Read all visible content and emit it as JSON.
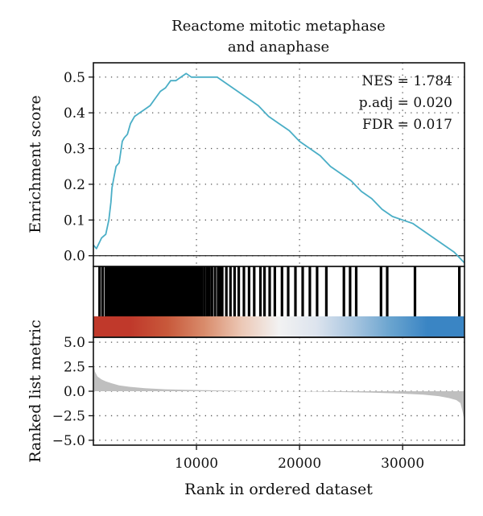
{
  "chart_data": {
    "type": "line",
    "title_lines": [
      "Reactome mitotic metaphase",
      "and anaphase"
    ],
    "xlabel": "Rank in ordered dataset",
    "x_range": [
      0,
      36000
    ],
    "x_ticks": [
      10000,
      20000,
      30000
    ],
    "x_tick_labels": [
      "10000",
      "20000",
      "30000"
    ],
    "grid": true,
    "annotations": [
      "NES = 1.784",
      "p.adj = 0.020",
      "FDR = 0.017"
    ],
    "annotation_position": "top-right",
    "enrichment": {
      "ylabel": "Enrichment score",
      "ylim": [
        -0.03,
        0.54
      ],
      "y_ticks": [
        0.0,
        0.1,
        0.2,
        0.3,
        0.4,
        0.5
      ],
      "y_tick_labels": [
        "0.0",
        "0.1",
        "0.2",
        "0.3",
        "0.4",
        "0.5"
      ],
      "line_color": "#4aaec6",
      "x": [
        0,
        300,
        800,
        1200,
        1500,
        1700,
        1800,
        2000,
        2200,
        2500,
        2800,
        3000,
        3300,
        3600,
        4000,
        4500,
        5000,
        5500,
        6000,
        6500,
        7000,
        7500,
        8000,
        8500,
        9000,
        9500,
        10000,
        11000,
        12000,
        13000,
        14000,
        15000,
        16000,
        17000,
        18000,
        19000,
        20000,
        21000,
        22000,
        23000,
        24000,
        25000,
        26000,
        27000,
        28000,
        29000,
        30000,
        31000,
        32000,
        33000,
        34000,
        35000,
        36000
      ],
      "y": [
        0.03,
        0.02,
        0.05,
        0.06,
        0.1,
        0.15,
        0.19,
        0.22,
        0.25,
        0.26,
        0.32,
        0.33,
        0.34,
        0.37,
        0.39,
        0.4,
        0.41,
        0.42,
        0.44,
        0.46,
        0.47,
        0.49,
        0.49,
        0.5,
        0.51,
        0.5,
        0.5,
        0.5,
        0.5,
        0.48,
        0.46,
        0.44,
        0.42,
        0.39,
        0.37,
        0.35,
        0.32,
        0.3,
        0.28,
        0.25,
        0.23,
        0.21,
        0.18,
        0.16,
        0.13,
        0.11,
        0.1,
        0.09,
        0.07,
        0.05,
        0.03,
        0.01,
        -0.02
      ]
    },
    "gene_hits": {
      "color": "#000000",
      "positions": [
        600,
        900,
        1200,
        1400,
        1600,
        1750,
        1900,
        2000,
        2100,
        2250,
        2400,
        2550,
        2700,
        2800,
        2900,
        3000,
        3100,
        3200,
        3350,
        3500,
        3600,
        3750,
        3900,
        4000,
        4150,
        4300,
        4450,
        4600,
        4800,
        4950,
        5100,
        5300,
        5450,
        5600,
        5800,
        5950,
        6100,
        6250,
        6400,
        6550,
        6700,
        6850,
        7000,
        7150,
        7300,
        7450,
        7600,
        7800,
        7950,
        8100,
        8300,
        8500,
        8700,
        8900,
        9100,
        9300,
        9500,
        9700,
        9900,
        10100,
        10300,
        10500,
        10750,
        11000,
        11250,
        11500,
        11800,
        12100,
        12300,
        12500,
        12900,
        13300,
        13700,
        14100,
        14600,
        15100,
        15600,
        16200,
        16600,
        17100,
        17600,
        18300,
        18900,
        19600,
        20300,
        21000,
        21700,
        22600,
        24300,
        24900,
        25500,
        27900,
        28500,
        31200,
        35500
      ]
    },
    "color_bar": {
      "stops": [
        "#c0392b",
        "#c0392b",
        "#c8593b",
        "#d98c6c",
        "#ecc8b6",
        "#f2f2f2",
        "#dde4ee",
        "#a9c6e0",
        "#6aa4cf",
        "#3a85c4",
        "#3a85c4"
      ]
    },
    "ranked_metric": {
      "ylabel": "Ranked list metric",
      "ylim": [
        -5.5,
        5.5
      ],
      "y_ticks": [
        5.0,
        2.5,
        0.0,
        -2.5,
        -5.0
      ],
      "y_tick_labels": [
        "5.0",
        "2.5",
        "0.0",
        "−2.5",
        "−5.0"
      ],
      "fill_color": "#bfbfbf",
      "x": [
        0,
        150,
        400,
        800,
        1200,
        1800,
        2500,
        3500,
        5000,
        7000,
        9000,
        12000,
        15000,
        18000,
        21000,
        24000,
        27000,
        30000,
        32000,
        33500,
        34500,
        35200,
        35600,
        35800,
        36000
      ],
      "y": [
        3.0,
        2.0,
        1.5,
        1.2,
        1.0,
        0.8,
        0.6,
        0.45,
        0.3,
        0.2,
        0.15,
        0.08,
        0.03,
        0.0,
        -0.03,
        -0.08,
        -0.15,
        -0.25,
        -0.35,
        -0.5,
        -0.7,
        -0.9,
        -1.2,
        -2.0,
        -3.0
      ]
    }
  }
}
